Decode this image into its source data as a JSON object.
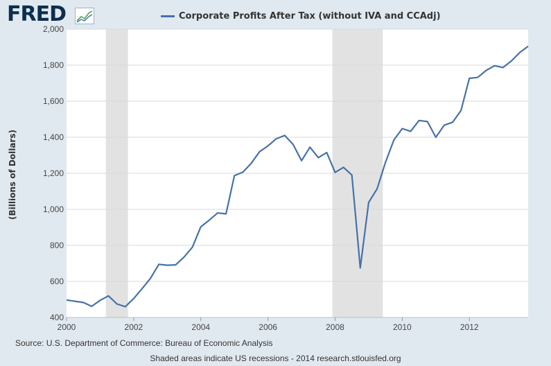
{
  "header": {
    "logo_text": "FRED",
    "logo_icon": "chart-line-icon"
  },
  "chart_data": {
    "type": "line",
    "title": "",
    "xlabel": "",
    "ylabel": "(Billions of Dollars)",
    "xlim": [
      2000.0,
      2013.75
    ],
    "ylim": [
      400,
      2000
    ],
    "grid": true,
    "legend_position": "top",
    "series": [
      {
        "name": "Corporate Profits After Tax (without IVA and CCAdj)",
        "color": "#4572a7",
        "x": [
          2000.0,
          2000.25,
          2000.5,
          2000.75,
          2001.0,
          2001.25,
          2001.5,
          2001.75,
          2002.0,
          2002.25,
          2002.5,
          2002.75,
          2003.0,
          2003.25,
          2003.5,
          2003.75,
          2004.0,
          2004.25,
          2004.5,
          2004.75,
          2005.0,
          2005.25,
          2005.5,
          2005.75,
          2006.0,
          2006.25,
          2006.5,
          2006.75,
          2007.0,
          2007.25,
          2007.5,
          2007.75,
          2008.0,
          2008.25,
          2008.5,
          2008.75,
          2009.0,
          2009.25,
          2009.5,
          2009.75,
          2010.0,
          2010.25,
          2010.5,
          2010.75,
          2011.0,
          2011.25,
          2011.5,
          2011.75,
          2012.0,
          2012.25,
          2012.5,
          2012.75,
          2013.0,
          2013.25,
          2013.5,
          2013.75
        ],
        "y": [
          497,
          490,
          483,
          462,
          495,
          520,
          475,
          460,
          505,
          560,
          617,
          695,
          690,
          692,
          735,
          790,
          903,
          940,
          980,
          975,
          1187,
          1206,
          1255,
          1320,
          1352,
          1392,
          1410,
          1360,
          1270,
          1345,
          1287,
          1315,
          1205,
          1233,
          1190,
          675,
          1038,
          1113,
          1260,
          1385,
          1448,
          1433,
          1493,
          1487,
          1400,
          1467,
          1483,
          1548,
          1727,
          1732,
          1771,
          1797,
          1787,
          1823,
          1870,
          1905
        ]
      }
    ],
    "x_ticks": [
      "2000",
      "2002",
      "2004",
      "2006",
      "2008",
      "2010",
      "2012"
    ],
    "x_tick_values": [
      2000,
      2002,
      2004,
      2006,
      2008,
      2010,
      2012
    ],
    "y_ticks": [
      "400",
      "600",
      "800",
      "1,000",
      "1,200",
      "1,400",
      "1,600",
      "1,800",
      "2,000"
    ],
    "y_tick_values": [
      400,
      600,
      800,
      1000,
      1200,
      1400,
      1600,
      1800,
      2000
    ],
    "recessions": [
      {
        "start": 2001.17,
        "end": 2001.83
      },
      {
        "start": 2007.92,
        "end": 2009.42
      }
    ],
    "colors": {
      "background": "#e1e9f0",
      "plot_background": "#ffffff",
      "grid": "#d8d8d8",
      "recession": "#e2e2e2"
    }
  },
  "footer": {
    "source": "Source: U.S. Department of Commerce: Bureau of Economic Analysis",
    "note": "Shaded areas indicate US recessions - 2014 research.stlouisfed.org"
  }
}
